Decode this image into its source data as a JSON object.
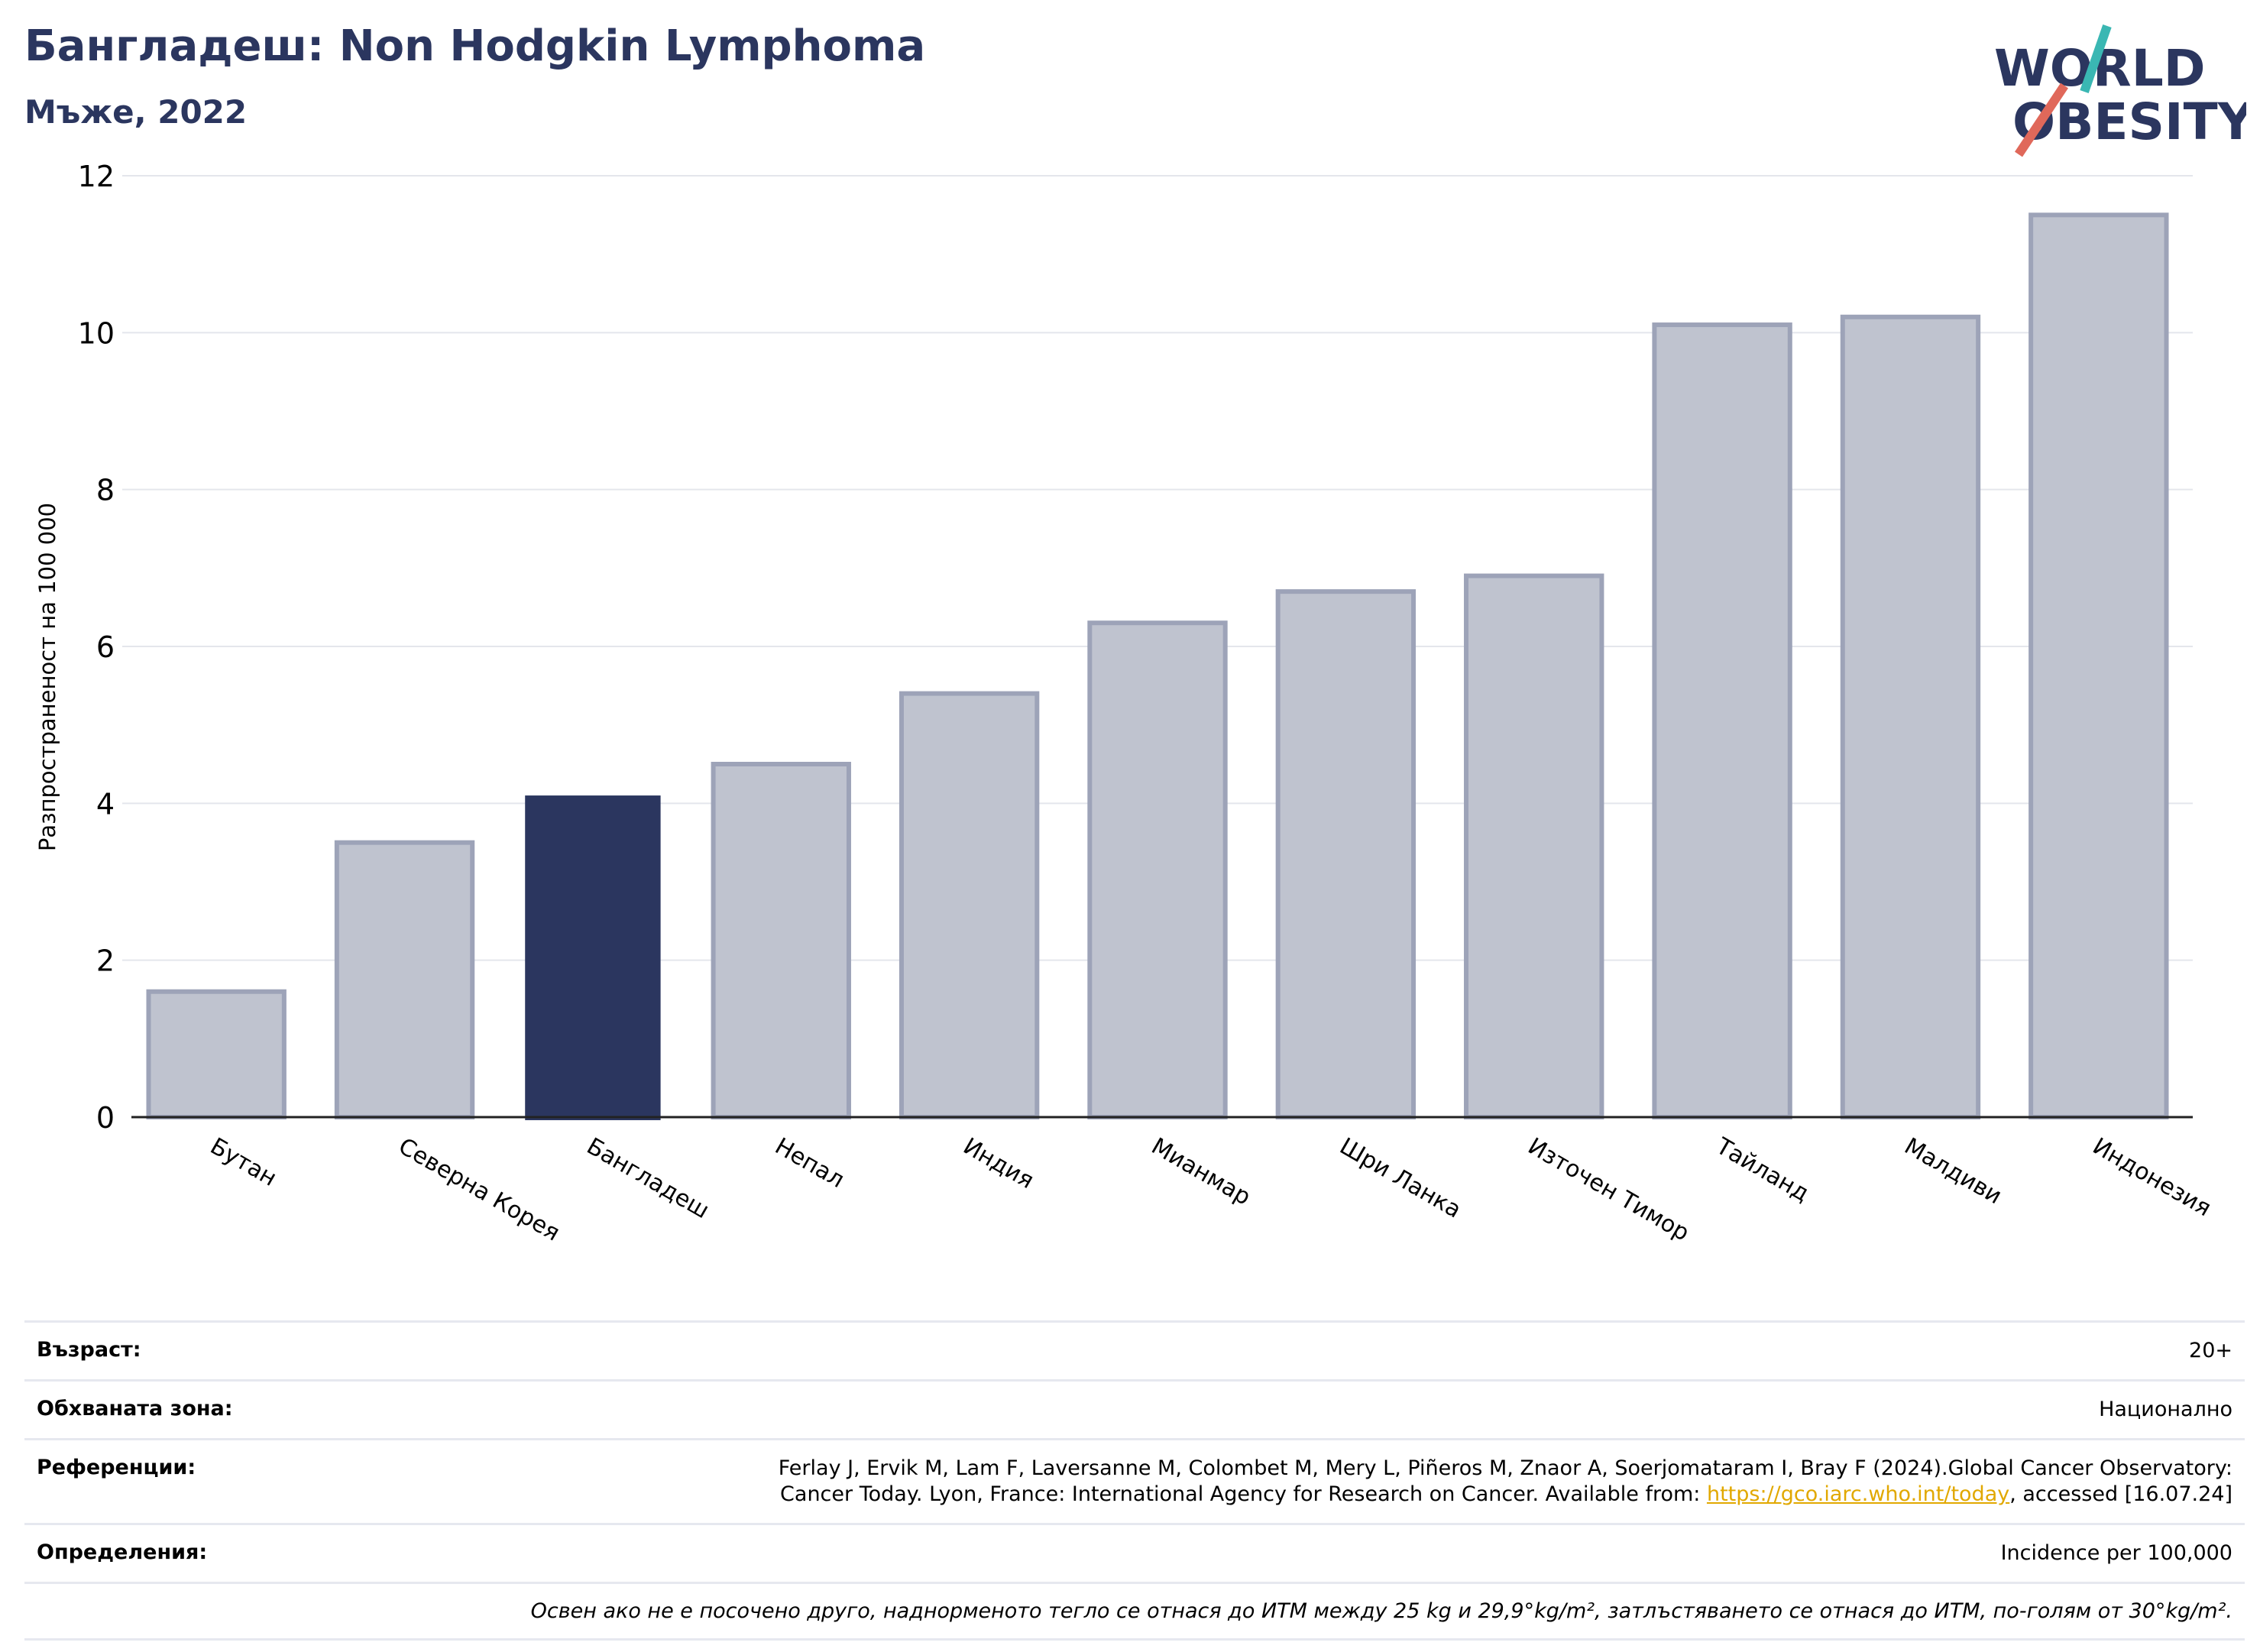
{
  "header": {
    "title": "Бангладеш: Non Hodgkin Lymphoma",
    "subtitle": "Мъже, 2022"
  },
  "logo": {
    "line1": "WORLD",
    "line2": "OBESITY"
  },
  "colors": {
    "highlight": "#2b365f",
    "bar": "#bfc3cf",
    "bar_edge": "#9da3b8",
    "accent_teal": "#3ab7b3",
    "accent_red": "#e0685a"
  },
  "chart_data": {
    "type": "bar",
    "ylabel": "Разпространеност  на 100 000",
    "ylim": [
      0,
      12
    ],
    "yticks": [
      0,
      2,
      4,
      6,
      8,
      10,
      12
    ],
    "grid": true,
    "categories": [
      "Бутан",
      "Северна Корея",
      "Бангладеш",
      "Непал",
      "Индия",
      "Мианмар",
      "Шри Ланка",
      "Източен Тимор",
      "Тайланд",
      "Малдиви",
      "Индонезия"
    ],
    "values": [
      1.6,
      3.5,
      4.1,
      4.5,
      5.4,
      6.3,
      6.7,
      6.9,
      10.1,
      10.2,
      11.5
    ],
    "highlight": "Бангладеш"
  },
  "footer": {
    "age_label": "Възраст:",
    "age_value": "20+",
    "area_label": "Обхваната зона:",
    "area_value": "Национално",
    "ref_label": "Референции:",
    "ref_text1": "Ferlay J, Ervik M, Lam F, Laversanne M, Colombet M, Mery L, Piñeros M, Znaor A, Soerjomataram I, Bray F (2024).Global Cancer Observatory:",
    "ref_text2": "Cancer Today. Lyon, France: International Agency for Research on Cancer. Available from: ",
    "ref_link": "https://gco.iarc.who.int/today",
    "ref_text3": ", accessed [16.07.24]",
    "def_label": "Определения:",
    "def_value": "Incidence per 100,000",
    "note": "Освен ако не е посочено друго, наднорменото тегло се отнася до ИТМ между 25 kg и 29,9°kg/m², затлъстяването се отнася до ИТМ, по-голям от 30°kg/m²."
  }
}
